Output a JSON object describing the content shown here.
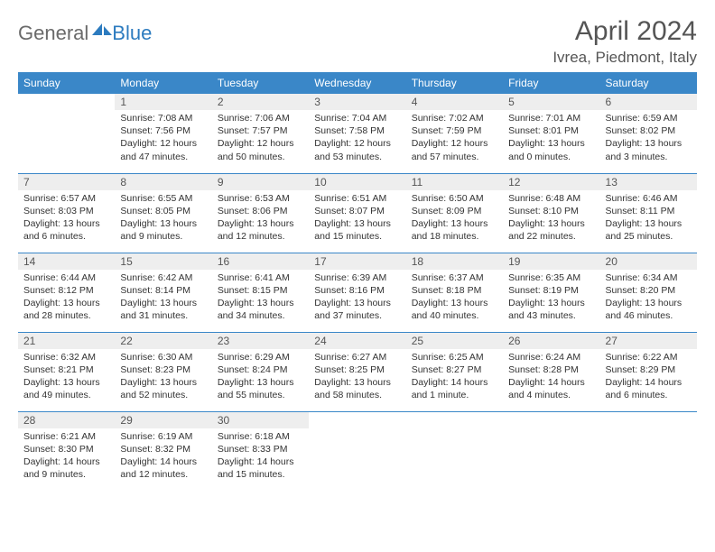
{
  "logo": {
    "word1": "General",
    "word2": "Blue",
    "icon_color": "#2c7bbf"
  },
  "title": "April 2024",
  "location": "Ivrea, Piedmont, Italy",
  "colors": {
    "header_bg": "#3a87c8",
    "daynum_bg": "#eeeeee",
    "rule": "#3a87c8",
    "text": "#333333"
  },
  "weekdays": [
    "Sunday",
    "Monday",
    "Tuesday",
    "Wednesday",
    "Thursday",
    "Friday",
    "Saturday"
  ],
  "weeks": [
    [
      null,
      {
        "n": "1",
        "sr": "7:08 AM",
        "ss": "7:56 PM",
        "dl": "Daylight: 12 hours and 47 minutes."
      },
      {
        "n": "2",
        "sr": "7:06 AM",
        "ss": "7:57 PM",
        "dl": "Daylight: 12 hours and 50 minutes."
      },
      {
        "n": "3",
        "sr": "7:04 AM",
        "ss": "7:58 PM",
        "dl": "Daylight: 12 hours and 53 minutes."
      },
      {
        "n": "4",
        "sr": "7:02 AM",
        "ss": "7:59 PM",
        "dl": "Daylight: 12 hours and 57 minutes."
      },
      {
        "n": "5",
        "sr": "7:01 AM",
        "ss": "8:01 PM",
        "dl": "Daylight: 13 hours and 0 minutes."
      },
      {
        "n": "6",
        "sr": "6:59 AM",
        "ss": "8:02 PM",
        "dl": "Daylight: 13 hours and 3 minutes."
      }
    ],
    [
      {
        "n": "7",
        "sr": "6:57 AM",
        "ss": "8:03 PM",
        "dl": "Daylight: 13 hours and 6 minutes."
      },
      {
        "n": "8",
        "sr": "6:55 AM",
        "ss": "8:05 PM",
        "dl": "Daylight: 13 hours and 9 minutes."
      },
      {
        "n": "9",
        "sr": "6:53 AM",
        "ss": "8:06 PM",
        "dl": "Daylight: 13 hours and 12 minutes."
      },
      {
        "n": "10",
        "sr": "6:51 AM",
        "ss": "8:07 PM",
        "dl": "Daylight: 13 hours and 15 minutes."
      },
      {
        "n": "11",
        "sr": "6:50 AM",
        "ss": "8:09 PM",
        "dl": "Daylight: 13 hours and 18 minutes."
      },
      {
        "n": "12",
        "sr": "6:48 AM",
        "ss": "8:10 PM",
        "dl": "Daylight: 13 hours and 22 minutes."
      },
      {
        "n": "13",
        "sr": "6:46 AM",
        "ss": "8:11 PM",
        "dl": "Daylight: 13 hours and 25 minutes."
      }
    ],
    [
      {
        "n": "14",
        "sr": "6:44 AM",
        "ss": "8:12 PM",
        "dl": "Daylight: 13 hours and 28 minutes."
      },
      {
        "n": "15",
        "sr": "6:42 AM",
        "ss": "8:14 PM",
        "dl": "Daylight: 13 hours and 31 minutes."
      },
      {
        "n": "16",
        "sr": "6:41 AM",
        "ss": "8:15 PM",
        "dl": "Daylight: 13 hours and 34 minutes."
      },
      {
        "n": "17",
        "sr": "6:39 AM",
        "ss": "8:16 PM",
        "dl": "Daylight: 13 hours and 37 minutes."
      },
      {
        "n": "18",
        "sr": "6:37 AM",
        "ss": "8:18 PM",
        "dl": "Daylight: 13 hours and 40 minutes."
      },
      {
        "n": "19",
        "sr": "6:35 AM",
        "ss": "8:19 PM",
        "dl": "Daylight: 13 hours and 43 minutes."
      },
      {
        "n": "20",
        "sr": "6:34 AM",
        "ss": "8:20 PM",
        "dl": "Daylight: 13 hours and 46 minutes."
      }
    ],
    [
      {
        "n": "21",
        "sr": "6:32 AM",
        "ss": "8:21 PM",
        "dl": "Daylight: 13 hours and 49 minutes."
      },
      {
        "n": "22",
        "sr": "6:30 AM",
        "ss": "8:23 PM",
        "dl": "Daylight: 13 hours and 52 minutes."
      },
      {
        "n": "23",
        "sr": "6:29 AM",
        "ss": "8:24 PM",
        "dl": "Daylight: 13 hours and 55 minutes."
      },
      {
        "n": "24",
        "sr": "6:27 AM",
        "ss": "8:25 PM",
        "dl": "Daylight: 13 hours and 58 minutes."
      },
      {
        "n": "25",
        "sr": "6:25 AM",
        "ss": "8:27 PM",
        "dl": "Daylight: 14 hours and 1 minute."
      },
      {
        "n": "26",
        "sr": "6:24 AM",
        "ss": "8:28 PM",
        "dl": "Daylight: 14 hours and 4 minutes."
      },
      {
        "n": "27",
        "sr": "6:22 AM",
        "ss": "8:29 PM",
        "dl": "Daylight: 14 hours and 6 minutes."
      }
    ],
    [
      {
        "n": "28",
        "sr": "6:21 AM",
        "ss": "8:30 PM",
        "dl": "Daylight: 14 hours and 9 minutes."
      },
      {
        "n": "29",
        "sr": "6:19 AM",
        "ss": "8:32 PM",
        "dl": "Daylight: 14 hours and 12 minutes."
      },
      {
        "n": "30",
        "sr": "6:18 AM",
        "ss": "8:33 PM",
        "dl": "Daylight: 14 hours and 15 minutes."
      },
      null,
      null,
      null,
      null
    ]
  ]
}
